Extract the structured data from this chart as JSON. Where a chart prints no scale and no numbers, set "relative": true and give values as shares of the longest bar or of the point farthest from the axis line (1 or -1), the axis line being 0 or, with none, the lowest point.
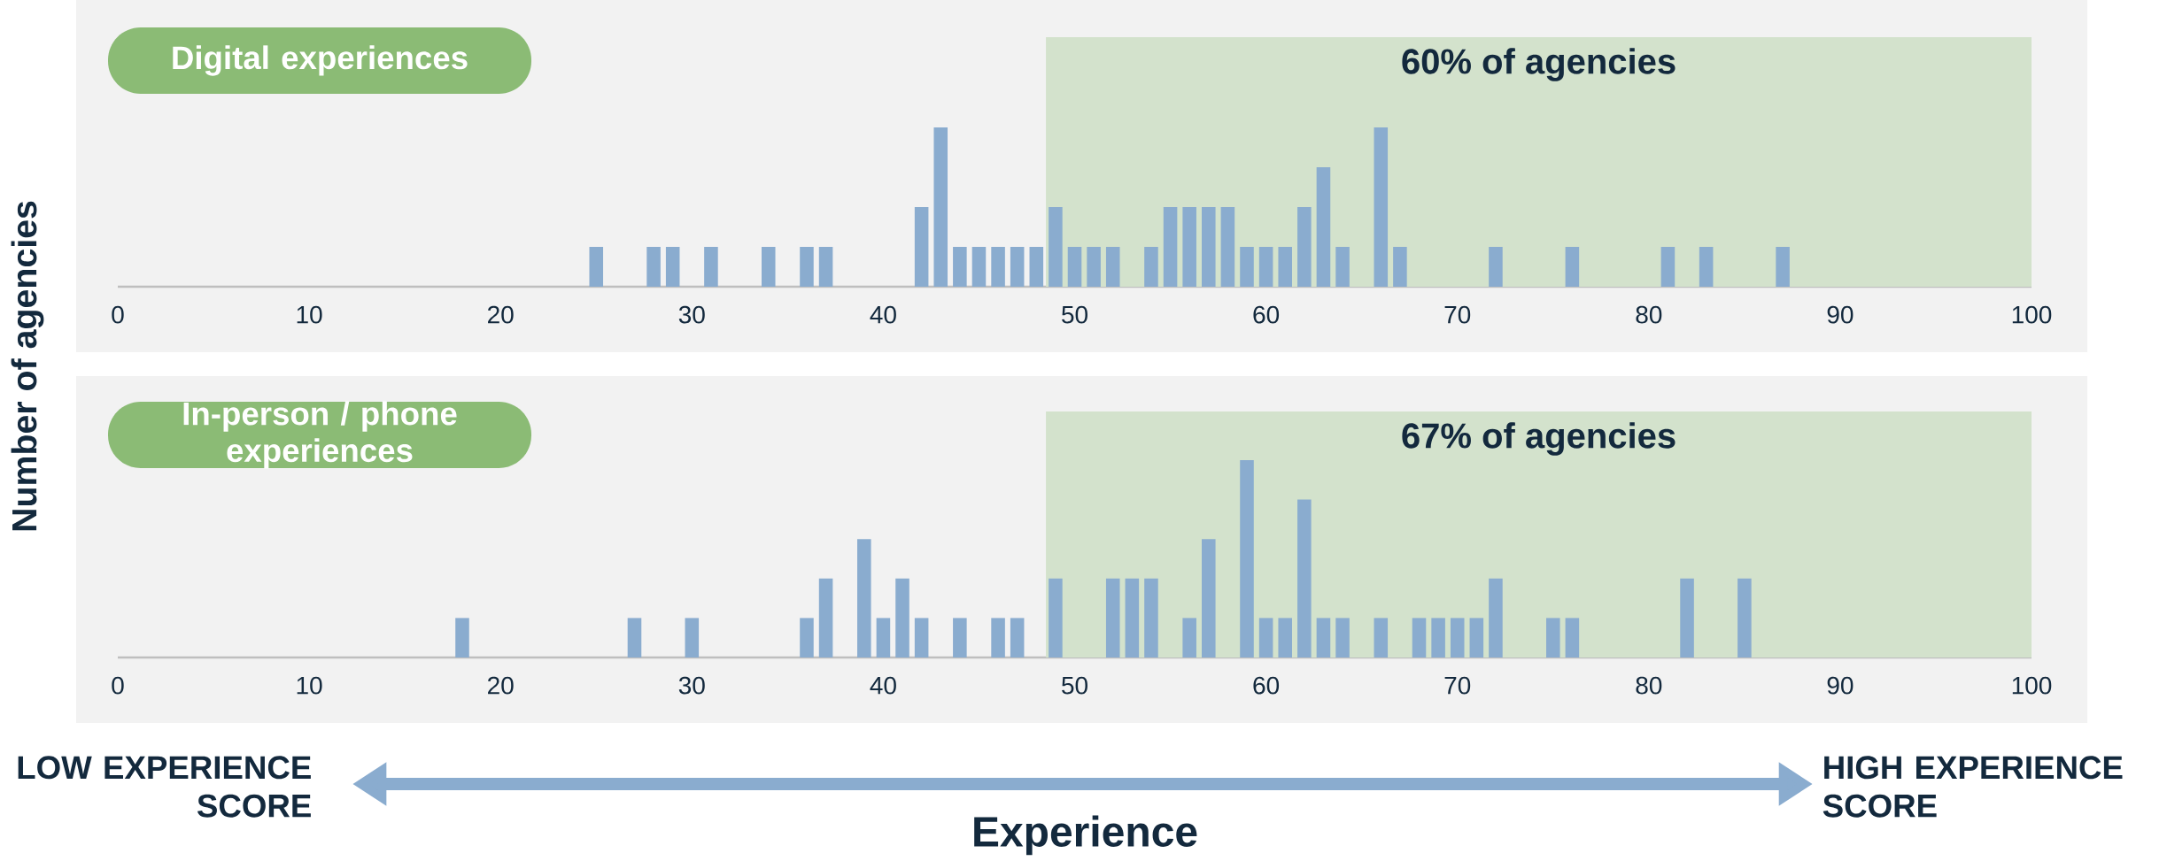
{
  "chart_data": [
    {
      "type": "bar",
      "relative": true,
      "color": "#8aaccf",
      "ylabel": "Number of agencies",
      "annotations": [
        "Digital experiences"
      ],
      "x": [
        25,
        28,
        29,
        31,
        34,
        36,
        37,
        42,
        43,
        44,
        45,
        46,
        47,
        48,
        49,
        50,
        51,
        52,
        54,
        55,
        56,
        57,
        58,
        59,
        60,
        61,
        62,
        63,
        64,
        66,
        67,
        72,
        76,
        81,
        83,
        87
      ],
      "values": [
        0.25,
        0.25,
        0.25,
        0.25,
        0.25,
        0.25,
        0.25,
        0.5,
        1,
        0.25,
        0.25,
        0.25,
        0.25,
        0.25,
        0.5,
        0.25,
        0.25,
        0.25,
        0.25,
        0.5,
        0.5,
        0.5,
        0.5,
        0.25,
        0.25,
        0.25,
        0.5,
        0.75,
        0.25,
        1,
        0.25,
        0.25,
        0.25,
        0.25,
        0.25,
        0.25
      ],
      "xlim": [
        0,
        100
      ],
      "xticks": [
        0,
        10,
        20,
        30,
        40,
        50,
        60,
        70,
        80,
        90,
        100
      ],
      "bands": [
        {
          "axis": "x",
          "from": 48.5,
          "to": 100,
          "label": "60% of agencies",
          "color": "#d3e2cc"
        }
      ]
    },
    {
      "type": "bar",
      "relative": true,
      "color": "#8aaccf",
      "xlabel": "Experience",
      "annotations": [
        "In-person / phone experiences",
        "LOW EXPERIENCE SCORE",
        "HIGH EXPERIENCE SCORE"
      ],
      "x": [
        18,
        27,
        30,
        36,
        37,
        39,
        40,
        41,
        42,
        44,
        46,
        47,
        49,
        52,
        53,
        54,
        56,
        57,
        59,
        60,
        61,
        62,
        63,
        64,
        66,
        68,
        69,
        70,
        71,
        72,
        75,
        76,
        82,
        85
      ],
      "values": [
        0.2,
        0.2,
        0.2,
        0.2,
        0.4,
        0.6,
        0.2,
        0.4,
        0.2,
        0.2,
        0.2,
        0.2,
        0.4,
        0.4,
        0.4,
        0.4,
        0.2,
        0.6,
        1,
        0.2,
        0.2,
        0.8,
        0.2,
        0.2,
        0.2,
        0.2,
        0.2,
        0.2,
        0.2,
        0.4,
        0.2,
        0.2,
        0.4,
        0.4
      ],
      "xlim": [
        0,
        100
      ],
      "xticks": [
        0,
        10,
        20,
        30,
        40,
        50,
        60,
        70,
        80,
        90,
        100
      ],
      "bands": [
        {
          "axis": "x",
          "from": 48.5,
          "to": 100,
          "label": "67% of agencies",
          "color": "#d3e2cc"
        }
      ]
    }
  ]
}
